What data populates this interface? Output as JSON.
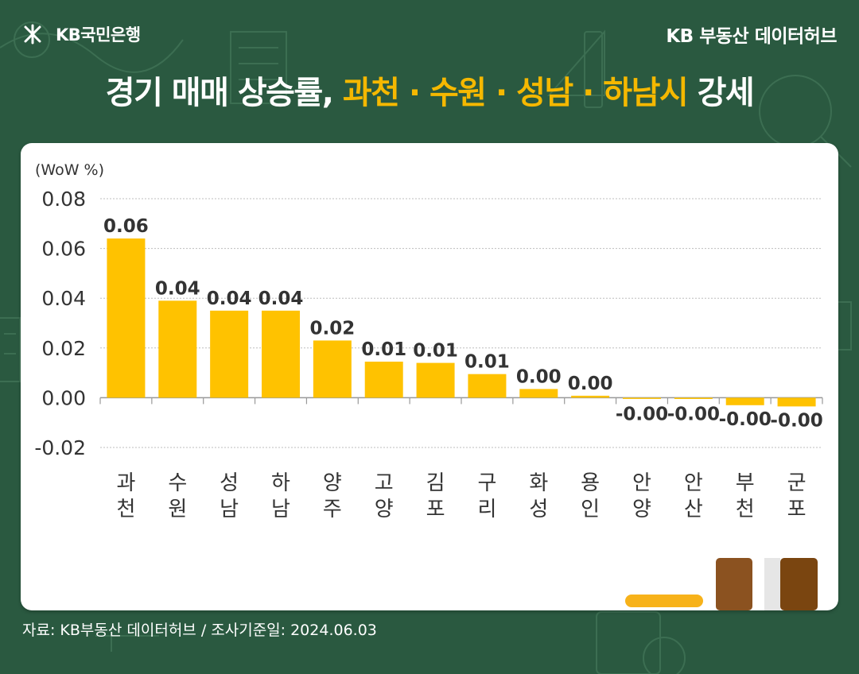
{
  "header": {
    "logo_text": "KB국민은행",
    "brand": "KB 부동산  데이터허브"
  },
  "title": {
    "part1": "경기 매매 상승률, ",
    "highlight": "과천 · 수원 · 성남 · 하남시",
    "part2": " 강세"
  },
  "source": "자료: KB부동산 데이터허브 / 조사기준일: 2024.06.03",
  "colors": {
    "background": "#2a5940",
    "accent": "#f5b800",
    "bar": "#ffc200",
    "brown": "#8b5220",
    "dark_brown": "#7a4510"
  },
  "chart_data": {
    "type": "bar",
    "unit_label": "(WoW %)",
    "categories": [
      "과\n천",
      "수\n원",
      "성\n남",
      "하\n남",
      "양\n주",
      "고\n양",
      "김\n포",
      "구\n리",
      "화\n성",
      "용\n인",
      "안\n양",
      "안\n산",
      "부\n천",
      "군\n포"
    ],
    "values": [
      0.064,
      0.039,
      0.035,
      0.035,
      0.023,
      0.0145,
      0.014,
      0.0095,
      0.0035,
      0.0008,
      -0.0002,
      -0.0005,
      -0.003,
      -0.0035
    ],
    "data_labels": [
      "0.06",
      "0.04",
      "0.04",
      "0.04",
      "0.02",
      "0.01",
      "0.01",
      "0.01",
      "0.00",
      "0.00",
      "-0.00",
      "-0.00",
      "-0.00",
      "-0.00"
    ],
    "y_ticks": [
      "0.08",
      "0.06",
      "0.04",
      "0.02",
      "0.00",
      "-0.02"
    ],
    "y_tick_values": [
      0.08,
      0.06,
      0.04,
      0.02,
      0.0,
      -0.02
    ],
    "ylim": [
      -0.02,
      0.08
    ],
    "grid": true
  }
}
